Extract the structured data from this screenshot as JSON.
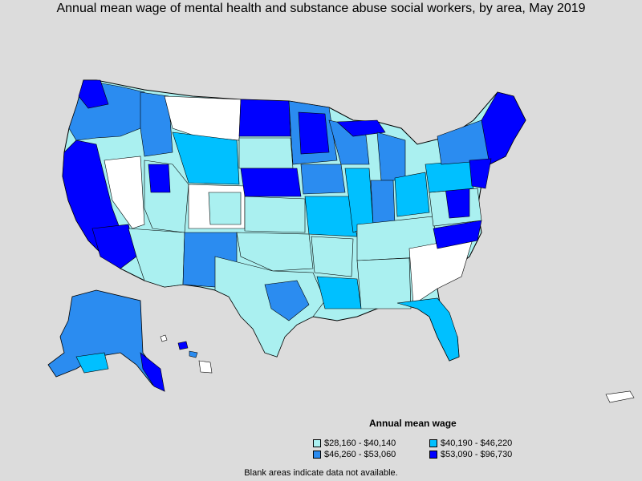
{
  "title": "Annual mean wage of mental health and substance abuse social workers, by area, May 2019",
  "legend": {
    "title": "Annual mean wage",
    "items": [
      {
        "label": "$28,160 - $40,140",
        "color": "#aaf0f0"
      },
      {
        "label": "$40,190 - $46,220",
        "color": "#00c0ff"
      },
      {
        "label": "$46,260 - $53,060",
        "color": "#2b8cf0"
      },
      {
        "label": "$53,090 - $96,730",
        "color": "#0000ff"
      }
    ]
  },
  "note": "Blank areas indicate data not available.",
  "colors": {
    "background": "#dcdcdc",
    "no_data": "#ffffff",
    "border": "#000000"
  }
}
